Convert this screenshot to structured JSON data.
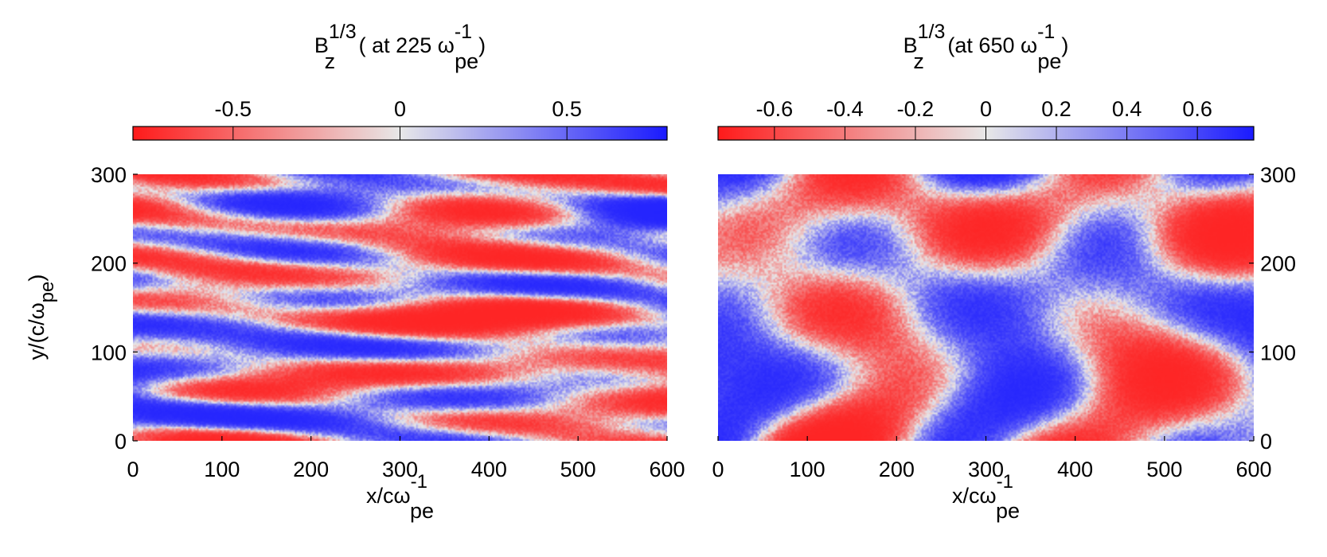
{
  "colors": {
    "negative": "#ff1a1a",
    "zero": "#e8e8e8",
    "positive": "#1a1aff",
    "axis": "#000000"
  },
  "chart_data": [
    {
      "type": "heatmap",
      "title": {
        "base": "B",
        "sub": "z",
        "sup": "1/3",
        "prefix": " ( at 225 ω",
        "psub": "pe",
        "psup": "-1",
        "suffix": ")"
      },
      "field": "B_z^(1/3)",
      "time": "225 ω_pe^-1",
      "pattern": "filamentary stripes elongated along x",
      "xlabel": {
        "main": "x/cω",
        "sup": "-1",
        "sub": "pe"
      },
      "ylabel": {
        "main": "y/(c/ω",
        "sub": "pe",
        "suffix": ")"
      },
      "xlim": [
        0,
        600
      ],
      "ylim": [
        0,
        300
      ],
      "xticks": [
        0,
        100,
        200,
        300,
        400,
        500,
        600
      ],
      "yticks": [
        0,
        100,
        200,
        300
      ],
      "yaxis_side": "left",
      "colorbar": {
        "range": [
          -0.8,
          0.8
        ],
        "ticks": [
          -0.5,
          0,
          0.5
        ],
        "tick_labels": [
          "-0.5",
          "0",
          "0.5"
        ]
      }
    },
    {
      "type": "heatmap",
      "title": {
        "base": "B",
        "sub": "z",
        "sup": "1/3",
        "prefix": " (at 650 ω",
        "psub": "pe",
        "psup": "-1",
        "suffix": ")"
      },
      "field": "B_z^(1/3)",
      "time": "650 ω_pe^-1",
      "pattern": "large-scale isotropic patches",
      "xlabel": {
        "main": "x/cω",
        "sup": "-1",
        "sub": "pe"
      },
      "ylabel": null,
      "xlim": [
        0,
        600
      ],
      "ylim": [
        0,
        300
      ],
      "xticks": [
        0,
        100,
        200,
        300,
        400,
        500,
        600
      ],
      "yticks": [
        0,
        100,
        200,
        300
      ],
      "yaxis_side": "right",
      "colorbar": {
        "range": [
          -0.76,
          0.76
        ],
        "ticks": [
          -0.6,
          -0.4,
          -0.2,
          0,
          0.2,
          0.4,
          0.6
        ],
        "tick_labels": [
          "-0.6",
          "-0.4",
          "-0.2",
          "0",
          "0.2",
          "0.4",
          "0.6"
        ]
      }
    }
  ]
}
